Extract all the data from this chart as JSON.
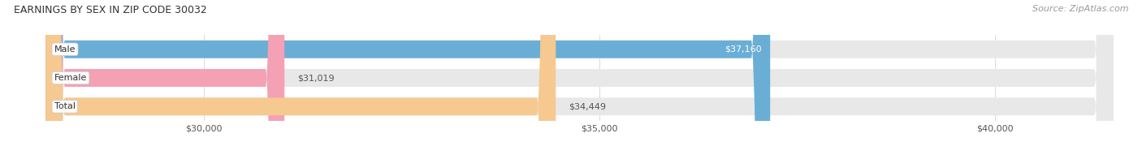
{
  "title": "EARNINGS BY SEX IN ZIP CODE 30032",
  "source": "Source: ZipAtlas.com",
  "categories": [
    "Male",
    "Female",
    "Total"
  ],
  "values": [
    37160,
    31019,
    34449
  ],
  "bar_colors": [
    "#6aaed6",
    "#f4a0b5",
    "#f5c990"
  ],
  "track_color": "#e8e8e8",
  "label_colors": [
    "#ffffff",
    "#555555",
    "#555555"
  ],
  "xlim": [
    28000,
    41500
  ],
  "xticks": [
    30000,
    35000,
    40000
  ],
  "xtick_labels": [
    "$30,000",
    "$35,000",
    "$40,000"
  ],
  "value_labels": [
    "$37,160",
    "$31,019",
    "$34,449"
  ],
  "bar_height": 0.62,
  "figsize": [
    14.06,
    1.96
  ],
  "dpi": 100,
  "title_fontsize": 9,
  "source_fontsize": 8,
  "bar_label_fontsize": 8,
  "tick_fontsize": 8,
  "category_fontsize": 8
}
